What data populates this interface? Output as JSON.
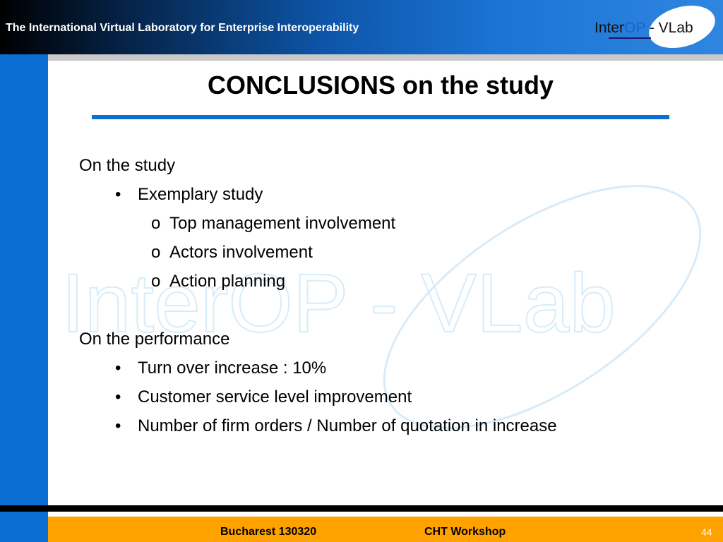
{
  "header": {
    "title": "The International Virtual Laboratory for Enterprise Interoperability",
    "logo": {
      "part1": "Inter",
      "part2": "OP",
      "part3": " - VLab"
    }
  },
  "watermark": "InterOP - VLab",
  "slide": {
    "title": "CONCLUSIONS on the study",
    "sections": [
      {
        "heading": "On the study",
        "bullets": [
          "Exemplary study"
        ],
        "subbullets": [
          "Top management involvement",
          "Actors involvement",
          "Action planning"
        ]
      },
      {
        "heading": "On the performance",
        "bullets": [
          "Turn over increase : 10%",
          "Customer service level improvement",
          "Number of firm orders / Number of quotation in increase"
        ]
      }
    ],
    "bullet_glyph": "•",
    "subbullet_glyph": "o"
  },
  "footer": {
    "location": "Bucharest  130320",
    "event": "CHT Workshop",
    "page": "44"
  },
  "colors": {
    "accent_blue": "#0a6ed3",
    "footer_orange": "#ffa200",
    "logo_blue": "#1a63c8"
  }
}
